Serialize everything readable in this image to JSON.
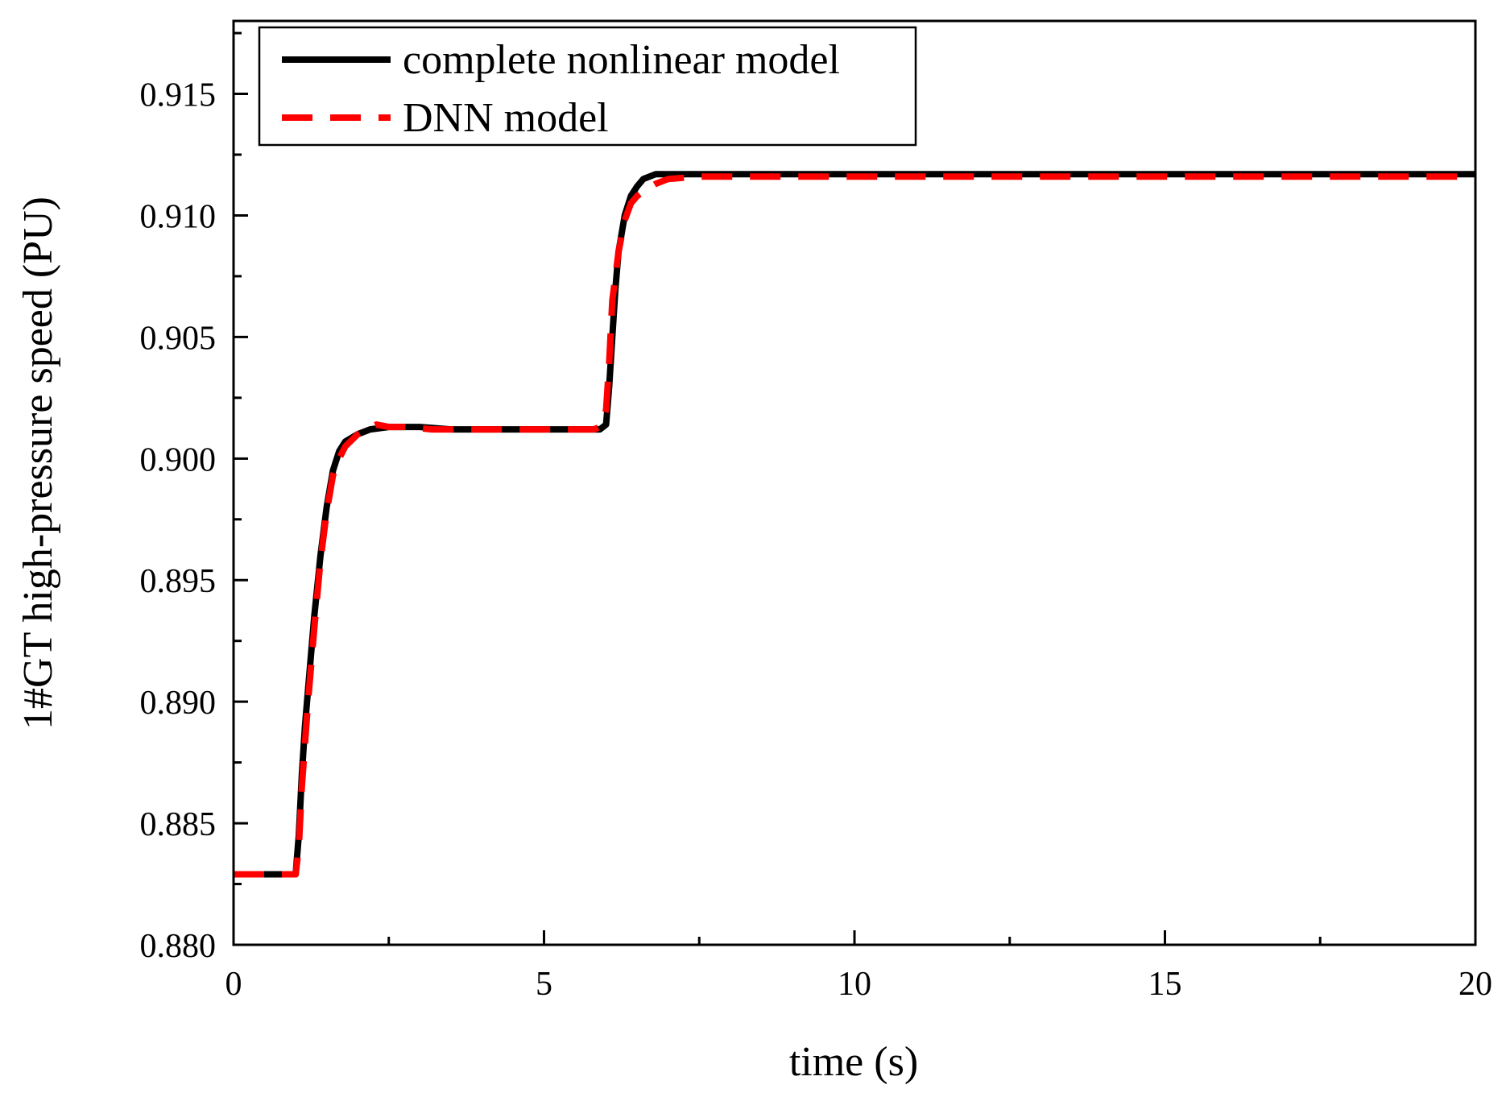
{
  "chart_data": {
    "type": "line",
    "title": "",
    "xlabel": "time (s)",
    "ylabel": "1#GT high-pressure speed (PU)",
    "xlim": [
      0,
      20
    ],
    "ylim": [
      0.88,
      0.918
    ],
    "xticks": [
      0,
      5,
      10,
      15,
      20
    ],
    "xtick_labels": [
      "0",
      "5",
      "10",
      "15",
      "20"
    ],
    "yticks": [
      0.88,
      0.885,
      0.89,
      0.895,
      0.9,
      0.905,
      0.91,
      0.915
    ],
    "ytick_labels": [
      "0.880",
      "0.885",
      "0.890",
      "0.895",
      "0.900",
      "0.905",
      "0.910",
      "0.915"
    ],
    "grid": false,
    "legend_position": "top-left",
    "series": [
      {
        "name": "complete nonlinear model",
        "color": "#000000",
        "style": "solid",
        "x": [
          0,
          1.0,
          1.05,
          1.1,
          1.15,
          1.2,
          1.3,
          1.4,
          1.5,
          1.6,
          1.7,
          1.8,
          2.0,
          2.2,
          2.5,
          3.0,
          3.5,
          4.0,
          5.0,
          5.9,
          6.0,
          6.05,
          6.1,
          6.15,
          6.2,
          6.3,
          6.4,
          6.5,
          6.6,
          6.8,
          7.0,
          8.0,
          10.0,
          15.0,
          20.0
        ],
        "y": [
          0.8829,
          0.8829,
          0.8845,
          0.887,
          0.889,
          0.8905,
          0.8935,
          0.896,
          0.898,
          0.8995,
          0.9003,
          0.9007,
          0.901,
          0.9012,
          0.9013,
          0.9013,
          0.9012,
          0.9012,
          0.9012,
          0.9012,
          0.9014,
          0.903,
          0.905,
          0.907,
          0.9085,
          0.91,
          0.9108,
          0.9112,
          0.9115,
          0.9117,
          0.9117,
          0.9117,
          0.9117,
          0.9117,
          0.9117
        ]
      },
      {
        "name": "DNN model",
        "color": "#ff0000",
        "style": "dashed",
        "x": [
          0,
          0.5,
          1.0,
          1.05,
          1.1,
          1.2,
          1.3,
          1.4,
          1.5,
          1.6,
          1.7,
          1.8,
          2.0,
          2.2,
          2.3,
          2.5,
          2.8,
          3.2,
          3.5,
          4.0,
          5.0,
          5.8,
          5.9,
          6.0,
          6.05,
          6.1,
          6.2,
          6.3,
          6.4,
          6.5,
          6.6,
          6.8,
          7.0,
          7.5,
          10.0,
          15.0,
          20.0
        ],
        "y": [
          0.8829,
          0.8829,
          0.8829,
          0.884,
          0.8865,
          0.89,
          0.893,
          0.8958,
          0.8978,
          0.8993,
          0.9,
          0.9005,
          0.901,
          0.9013,
          0.9014,
          0.9013,
          0.9013,
          0.9012,
          0.9012,
          0.9012,
          0.9012,
          0.9012,
          0.9013,
          0.902,
          0.904,
          0.9065,
          0.9085,
          0.9098,
          0.9105,
          0.9108,
          0.911,
          0.9113,
          0.9115,
          0.9116,
          0.9116,
          0.9116,
          0.9116
        ]
      }
    ]
  }
}
